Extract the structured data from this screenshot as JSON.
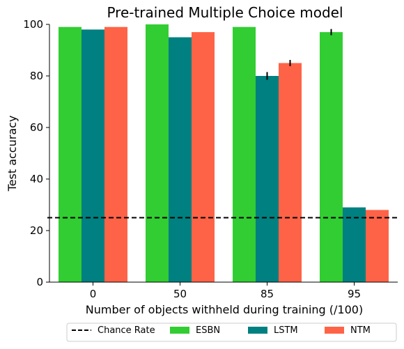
{
  "chart_data": {
    "type": "bar",
    "title": "Pre-trained Multiple Choice model",
    "xlabel": "Number of objects withheld during training (/100)",
    "ylabel": "Test accuracy",
    "categories": [
      "0",
      "50",
      "85",
      "95"
    ],
    "ylim": [
      0,
      100
    ],
    "yticks": [
      0,
      20,
      40,
      60,
      80,
      100
    ],
    "series": [
      {
        "name": "ESBN",
        "color": "#32cd32",
        "values": [
          99,
          100,
          99,
          97
        ],
        "errors": [
          0,
          0,
          0,
          1.2
        ]
      },
      {
        "name": "LSTM",
        "color": "#008080",
        "values": [
          98,
          95,
          80,
          29
        ],
        "errors": [
          0,
          0,
          1.5,
          0
        ]
      },
      {
        "name": "NTM",
        "color": "#ff6347",
        "values": [
          99,
          97,
          85,
          28
        ],
        "errors": [
          0,
          0,
          1.2,
          0
        ]
      }
    ],
    "reference_line": {
      "name": "Chance Rate",
      "value": 25,
      "style": "dashed",
      "color": "#000000"
    },
    "legend_entries": [
      "Chance Rate",
      "ESBN",
      "LSTM",
      "NTM"
    ],
    "legend_placement": "bottom-center",
    "grid": false
  }
}
